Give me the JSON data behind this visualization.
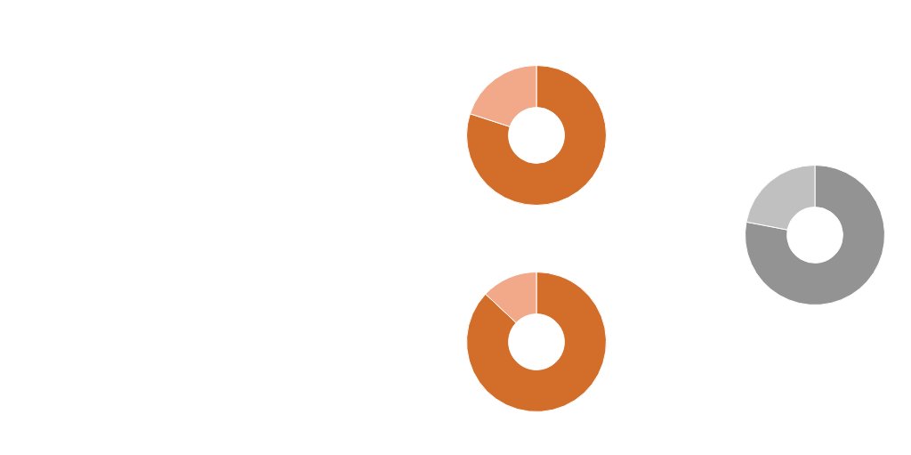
{
  "chart_data": [
    {
      "type": "donut",
      "categories": [
        null,
        null
      ],
      "values": [
        80,
        20
      ],
      "colors": [
        "#d26e2a",
        "#f2a98a"
      ]
    },
    {
      "type": "donut",
      "categories": [
        null,
        null
      ],
      "values": [
        87,
        13
      ],
      "colors": [
        "#d26e2a",
        "#f2a98a"
      ]
    },
    {
      "type": "donut",
      "categories": [
        null,
        null
      ],
      "values": [
        78,
        22
      ],
      "colors": [
        "#939393",
        "#c0c0c0"
      ]
    }
  ]
}
